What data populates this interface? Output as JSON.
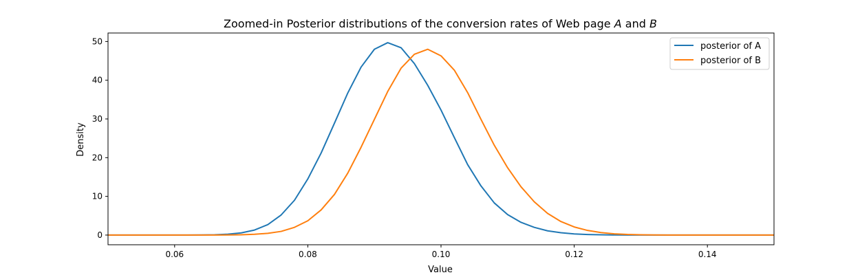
{
  "chart_data": {
    "type": "line",
    "title": "Zoomed-in Posterior distributions of the conversion rates of Web page A and B",
    "title_parts": {
      "prefix": "Zoomed-in Posterior distributions of the conversion rates of Web page ",
      "a": "A",
      "middle": " and ",
      "b": "B"
    },
    "xlabel": "Value",
    "ylabel": "Density",
    "xlim": [
      0.05,
      0.15
    ],
    "ylim": [
      -2.5,
      52.2
    ],
    "xticks": [
      0.06,
      0.08,
      0.1,
      0.12,
      0.14
    ],
    "xtick_labels": [
      "0.06",
      "0.08",
      "0.10",
      "0.12",
      "0.14"
    ],
    "yticks": [
      0,
      10,
      20,
      30,
      40,
      50
    ],
    "ytick_labels": [
      "0",
      "10",
      "20",
      "30",
      "40",
      "50"
    ],
    "grid": false,
    "legend_position": "top-right",
    "series": [
      {
        "name": "posterior of A",
        "color": "#1f77b4",
        "x": [
          0.05,
          0.052,
          0.054,
          0.056,
          0.058,
          0.06,
          0.062,
          0.064,
          0.066,
          0.068,
          0.07,
          0.072,
          0.074,
          0.076,
          0.078,
          0.08,
          0.082,
          0.084,
          0.086,
          0.088,
          0.09,
          0.092,
          0.094,
          0.096,
          0.098,
          0.1,
          0.102,
          0.104,
          0.106,
          0.108,
          0.11,
          0.112,
          0.114,
          0.116,
          0.118,
          0.12,
          0.122,
          0.124,
          0.126,
          0.128,
          0.13,
          0.132,
          0.134,
          0.136,
          0.138,
          0.14,
          0.142,
          0.144,
          0.146,
          0.148,
          0.15
        ],
        "y": [
          0.0,
          0.0,
          0.0,
          0.0,
          0.0,
          0.0,
          0.01,
          0.03,
          0.08,
          0.22,
          0.56,
          1.3,
          2.7,
          5.2,
          9.0,
          14.5,
          21.2,
          28.9,
          36.7,
          43.4,
          48.0,
          49.7,
          48.4,
          44.3,
          38.7,
          32.3,
          25.2,
          18.2,
          12.7,
          8.3,
          5.3,
          3.3,
          2.0,
          1.1,
          0.6,
          0.3,
          0.15,
          0.07,
          0.03,
          0.01,
          0.0,
          0.0,
          0.0,
          0.0,
          0.0,
          0.0,
          0.0,
          0.0,
          0.0,
          0.0,
          0.0
        ]
      },
      {
        "name": "posterior of B",
        "color": "#ff7f0e",
        "x": [
          0.05,
          0.052,
          0.054,
          0.056,
          0.058,
          0.06,
          0.062,
          0.064,
          0.066,
          0.068,
          0.07,
          0.072,
          0.074,
          0.076,
          0.078,
          0.08,
          0.082,
          0.084,
          0.086,
          0.088,
          0.09,
          0.092,
          0.094,
          0.096,
          0.098,
          0.1,
          0.102,
          0.104,
          0.106,
          0.108,
          0.11,
          0.112,
          0.114,
          0.116,
          0.118,
          0.12,
          0.122,
          0.124,
          0.126,
          0.128,
          0.13,
          0.132,
          0.134,
          0.136,
          0.138,
          0.14,
          0.142,
          0.144,
          0.146,
          0.148,
          0.15
        ],
        "y": [
          0.0,
          0.0,
          0.0,
          0.0,
          0.0,
          0.0,
          0.0,
          0.0,
          0.01,
          0.03,
          0.08,
          0.2,
          0.45,
          0.95,
          2.0,
          3.7,
          6.5,
          10.5,
          16.0,
          22.7,
          29.9,
          37.1,
          43.1,
          46.7,
          48.0,
          46.3,
          42.6,
          36.8,
          29.9,
          23.2,
          17.4,
          12.5,
          8.6,
          5.6,
          3.5,
          2.1,
          1.2,
          0.65,
          0.33,
          0.16,
          0.07,
          0.03,
          0.01,
          0.0,
          0.0,
          0.0,
          0.0,
          0.0,
          0.0,
          0.0,
          0.0
        ]
      }
    ]
  }
}
